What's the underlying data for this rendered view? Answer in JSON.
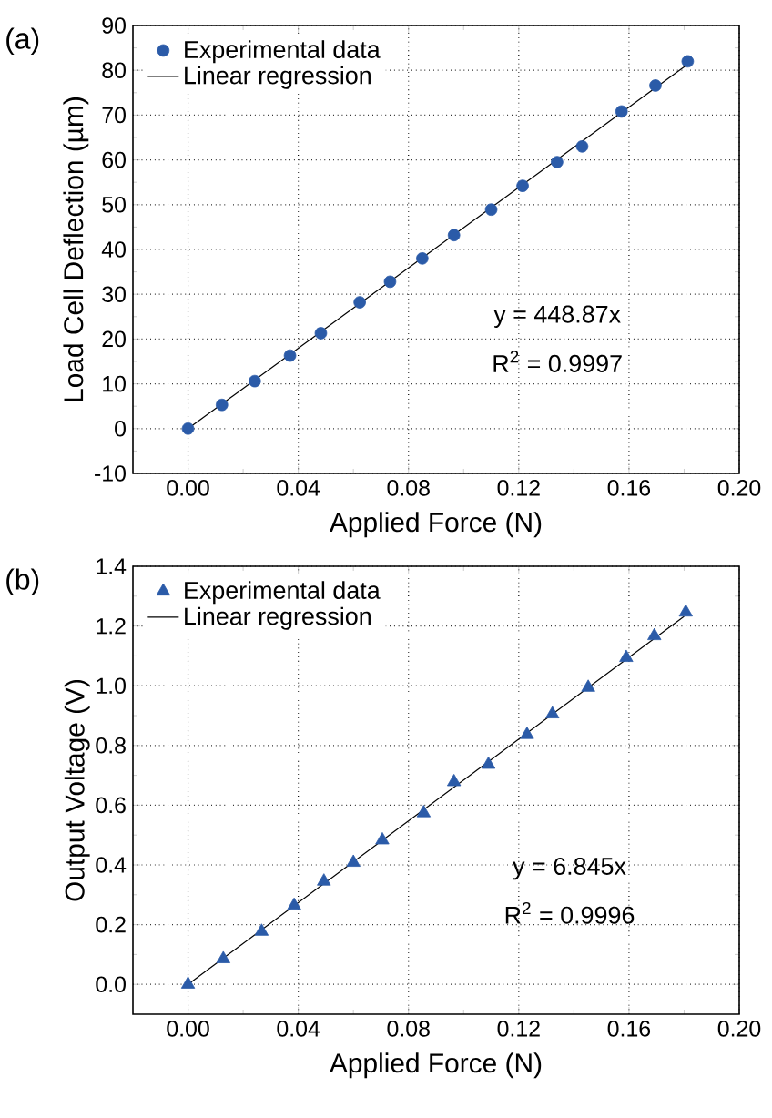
{
  "chart_data": [
    {
      "type": "scatter",
      "xlabel": "Applied Force (N)",
      "ylabel": "Load Cell Deflection (µm)",
      "xlim": [
        -0.02,
        0.2
      ],
      "ylim": [
        -10,
        90
      ],
      "xticks": [
        {
          "value": 0,
          "label": "0.00"
        },
        {
          "value": 0.04,
          "label": "0.04"
        },
        {
          "value": 0.08,
          "label": "0.08"
        },
        {
          "value": 0.12,
          "label": "0.12"
        },
        {
          "value": 0.16,
          "label": "0.16"
        },
        {
          "value": 0.2,
          "label": "0.20"
        }
      ],
      "yticks": [
        -10,
        0,
        10,
        20,
        30,
        40,
        50,
        60,
        70,
        80,
        90
      ],
      "grid": true,
      "legend": "top left",
      "annotations": [
        "(a)",
        "y = 448.87x",
        "R$^{2}$ = 0.9997"
      ],
      "series": [
        {
          "name": "Experimental data",
          "marker": "circle",
          "color": "#2b5ba8",
          "x": [
            0,
            0.0123,
            0.0242,
            0.037,
            0.0482,
            0.0623,
            0.0733,
            0.085,
            0.0965,
            0.11,
            0.1214,
            0.1339,
            0.143,
            0.1573,
            0.1696,
            0.1813
          ],
          "values": [
            0,
            5.3,
            10.6,
            16.3,
            21.3,
            28.2,
            32.8,
            38.0,
            43.2,
            48.9,
            54.2,
            59.5,
            63.0,
            70.8,
            76.6,
            82.0
          ]
        },
        {
          "name": "Linear regression",
          "type": "line",
          "marker": "none",
          "color": "#000000",
          "x": [
            0,
            0.181
          ],
          "values": [
            0,
            81.2
          ]
        }
      ]
    },
    {
      "type": "scatter",
      "xlabel": "Applied Force (N)",
      "ylabel": "Output Voltage (V)",
      "xlim": [
        -0.02,
        0.2
      ],
      "ylim": [
        -0.1,
        1.4
      ],
      "xticks": [
        {
          "value": 0,
          "label": "0.00"
        },
        {
          "value": 0.04,
          "label": "0.04"
        },
        {
          "value": 0.08,
          "label": "0.08"
        },
        {
          "value": 0.12,
          "label": "0.12"
        },
        {
          "value": 0.16,
          "label": "0.16"
        },
        {
          "value": 0.2,
          "label": "0.20"
        }
      ],
      "yticks": [
        {
          "value": 0,
          "label": "0.0"
        },
        {
          "value": 0.2,
          "label": "0.2"
        },
        {
          "value": 0.4,
          "label": "0.4"
        },
        {
          "value": 0.6,
          "label": "0.6"
        },
        {
          "value": 0.8,
          "label": "0.8"
        },
        {
          "value": 1.0,
          "label": "1.0"
        },
        {
          "value": 1.2,
          "label": "1.2"
        },
        {
          "value": 1.4,
          "label": "1.4"
        }
      ],
      "grid": true,
      "legend": "top left",
      "annotations": [
        "(b)",
        "y = 6.845x",
        "R$^{2}$ = 0.9996"
      ],
      "series": [
        {
          "name": "Experimental data",
          "marker": "triangle",
          "color": "#2b5ba8",
          "x": [
            0,
            0.0128,
            0.0267,
            0.0385,
            0.0493,
            0.06,
            0.0705,
            0.0855,
            0.0965,
            0.109,
            0.123,
            0.1322,
            0.1452,
            0.159,
            0.1692,
            0.1806
          ],
          "values": [
            0,
            0.085,
            0.177,
            0.264,
            0.345,
            0.408,
            0.483,
            0.574,
            0.678,
            0.736,
            0.836,
            0.905,
            0.994,
            1.094,
            1.167,
            1.246
          ]
        },
        {
          "name": "Linear regression",
          "type": "line",
          "marker": "none",
          "color": "#000000",
          "x": [
            0,
            0.18
          ],
          "values": [
            0,
            1.232
          ]
        }
      ]
    }
  ]
}
